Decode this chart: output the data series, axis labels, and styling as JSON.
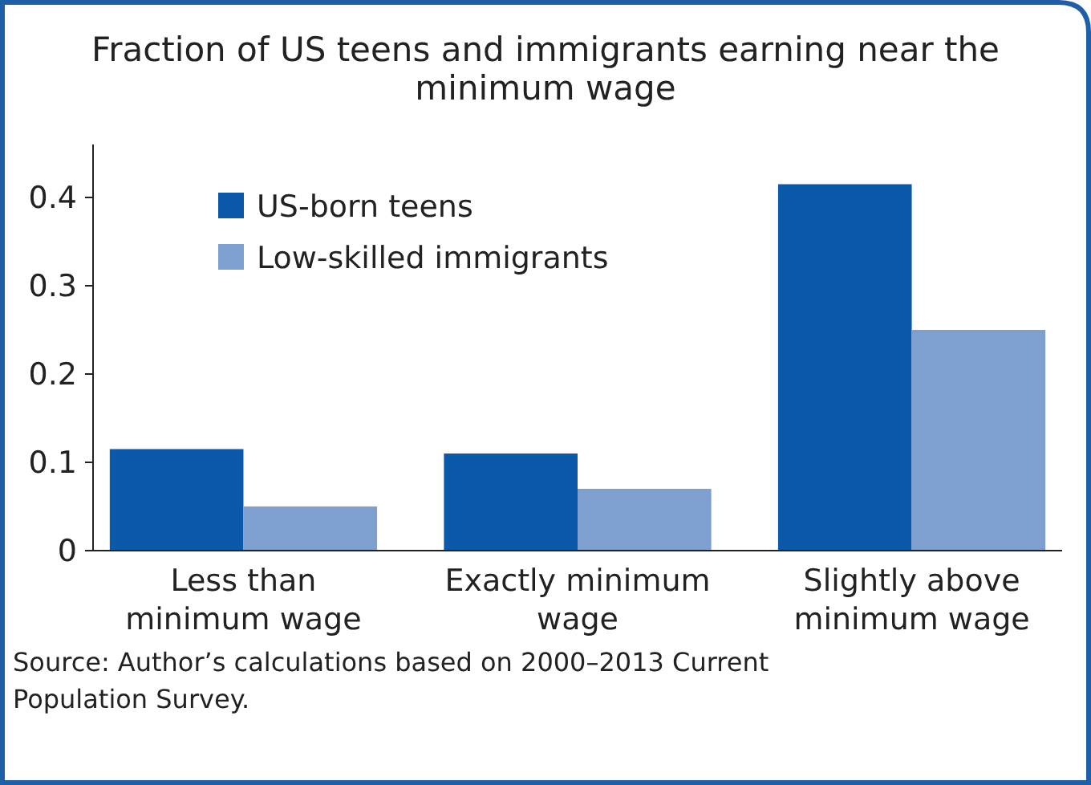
{
  "chart_data": {
    "type": "bar",
    "title": "Fraction of US teens and immigrants earning near the minimum wage",
    "categories": [
      "Less than minimum wage",
      "Exactly minimum wage",
      "Slightly above minimum wage"
    ],
    "series": [
      {
        "name": "US-born teens",
        "color": "#0b5aa9",
        "values": [
          0.115,
          0.11,
          0.415
        ]
      },
      {
        "name": "Low-skilled immigrants",
        "color": "#7f9fd1",
        "values": [
          0.05,
          0.07,
          0.25
        ]
      }
    ],
    "ylim": [
      0,
      0.46
    ],
    "yticks": [
      0,
      0.1,
      0.2,
      0.3,
      0.4
    ],
    "grid": false,
    "legend": "top left",
    "annotations": [
      "Source: Author’s calculations based on 2000–2013 Current Population Survey."
    ]
  }
}
